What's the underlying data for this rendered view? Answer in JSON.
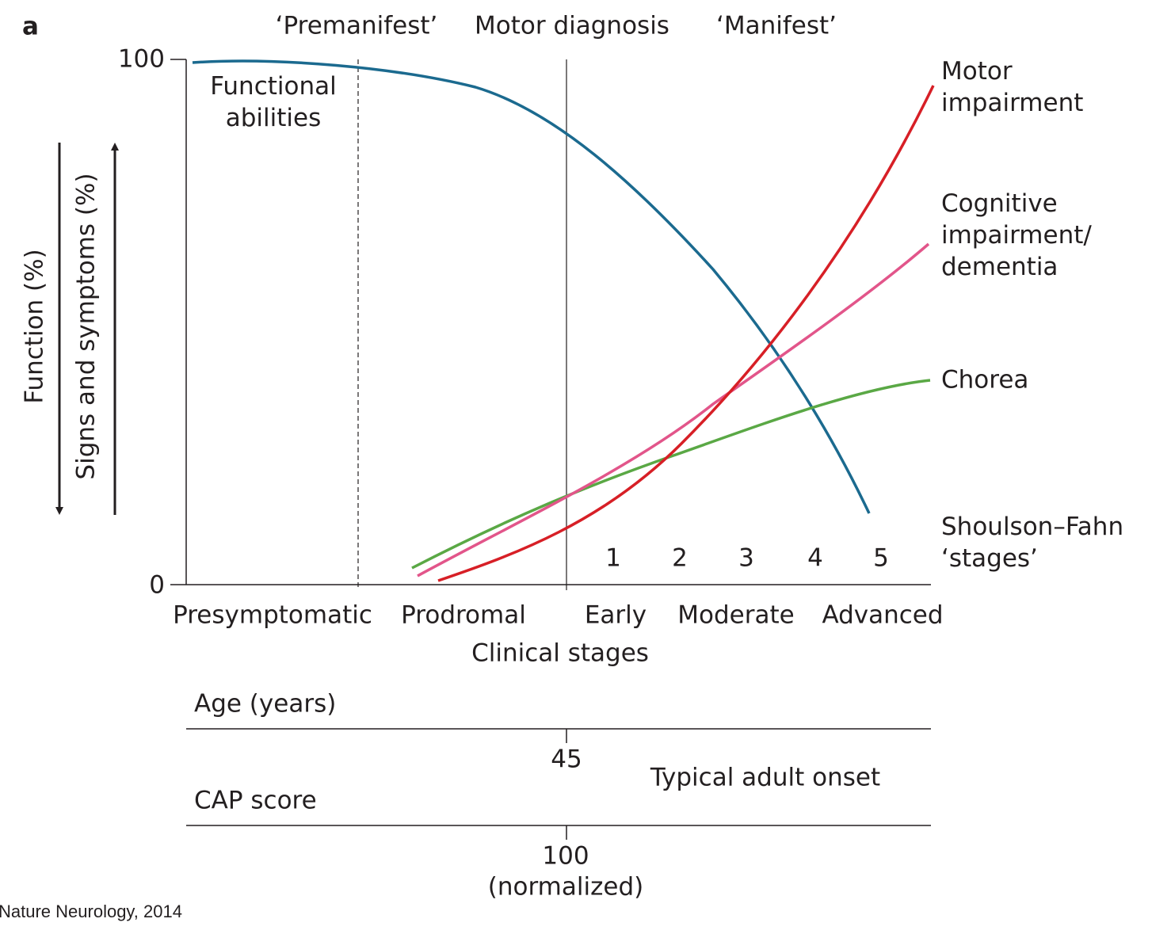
{
  "panel_label": "a",
  "phases": {
    "premanifest": "‘Premanifest’",
    "motor_diagnosis": "Motor diagnosis",
    "manifest": "‘Manifest’"
  },
  "y_axis": {
    "top": "100",
    "bottom": "0",
    "function_label": "Function (%)",
    "symptoms_label": "Signs and symptoms (%)"
  },
  "curves": {
    "functional": "Functional abilities",
    "motor": "Motor impairment",
    "cognitive": "Cognitive impairment/ dementia",
    "chorea": "Chorea"
  },
  "stages": {
    "label": "Shoulson–Fahn ‘stages’",
    "numbers": [
      "1",
      "2",
      "3",
      "4",
      "5"
    ]
  },
  "clinical_stages": {
    "title": "Clinical stages",
    "names": [
      "Presymptomatic",
      "Prodromal",
      "Early",
      "Moderate",
      "Advanced"
    ]
  },
  "age": {
    "label": "Age (years)",
    "value": "45",
    "note": "Typical adult onset"
  },
  "cap": {
    "label": "CAP score",
    "value": "100",
    "unit": "(normalized)"
  },
  "source": "Nature Neurology, 2014"
}
